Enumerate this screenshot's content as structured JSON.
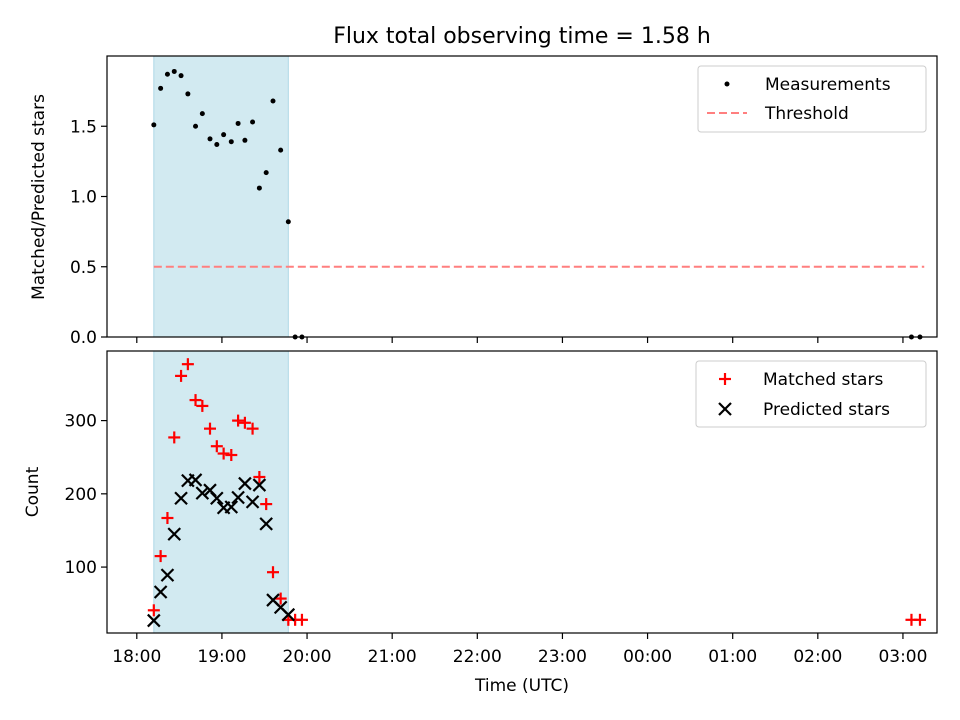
{
  "title": "Flux total observing time = 1.58 h",
  "xlabel": "Time (UTC)",
  "x_ticks": [
    "18:00",
    "19:00",
    "20:00",
    "21:00",
    "22:00",
    "23:00",
    "00:00",
    "01:00",
    "02:00",
    "03:00"
  ],
  "colors": {
    "shade": "#add8e6",
    "threshold": "#ff7f7f",
    "matched": "#ff0000",
    "predicted": "#000000",
    "measurement": "#000000"
  },
  "chart_data": [
    {
      "type": "scatter",
      "ylabel": "Matched/Predicted stars",
      "xlim": [
        -0.35,
        9.4
      ],
      "ylim": [
        0,
        2.0
      ],
      "y_ticks": [
        0.0,
        0.5,
        1.0,
        1.5
      ],
      "y_tick_labels": [
        "0.0",
        "0.5",
        "1.0",
        "1.5"
      ],
      "shaded_span_hours": [
        0.2,
        1.78
      ],
      "legend": {
        "position": "top-right",
        "entries": [
          "Measurements",
          "Threshold"
        ]
      },
      "threshold": {
        "name": "Threshold",
        "value": 0.5,
        "x_range_hours": [
          0.2,
          9.25
        ]
      },
      "series": [
        {
          "name": "Measurements",
          "marker": "dot",
          "x_hours": [
            0.2,
            0.28,
            0.36,
            0.44,
            0.52,
            0.6,
            0.69,
            0.77,
            0.86,
            0.94,
            1.02,
            1.11,
            1.19,
            1.27,
            1.36,
            1.44,
            1.52,
            1.6,
            1.69,
            1.78,
            1.86,
            1.94,
            9.1,
            9.2
          ],
          "y": [
            1.51,
            1.77,
            1.87,
            1.89,
            1.86,
            1.73,
            1.5,
            1.59,
            1.41,
            1.37,
            1.44,
            1.39,
            1.52,
            1.4,
            1.53,
            1.06,
            1.17,
            1.68,
            1.33,
            0.82,
            0.0,
            0.0,
            0.0,
            0.0
          ]
        }
      ]
    },
    {
      "type": "scatter",
      "ylabel": "Count",
      "xlim": [
        -0.35,
        9.4
      ],
      "ylim": [
        10,
        395
      ],
      "y_ticks": [
        100,
        200,
        300
      ],
      "y_tick_labels": [
        "100",
        "200",
        "300"
      ],
      "shaded_span_hours": [
        0.2,
        1.78
      ],
      "legend": {
        "position": "top-right",
        "entries": [
          "Matched stars",
          "Predicted stars"
        ]
      },
      "series": [
        {
          "name": "Matched stars",
          "marker": "plus",
          "x_hours": [
            0.2,
            0.28,
            0.36,
            0.44,
            0.52,
            0.6,
            0.69,
            0.77,
            0.86,
            0.94,
            1.02,
            1.11,
            1.19,
            1.27,
            1.36,
            1.44,
            1.52,
            1.6,
            1.69,
            1.78,
            1.86,
            1.94,
            9.1,
            9.2
          ],
          "y": [
            41,
            115,
            167,
            277,
            361,
            377,
            328,
            320,
            289,
            265,
            255,
            253,
            300,
            297,
            289,
            223,
            186,
            93,
            57,
            28,
            28,
            28,
            28,
            28
          ]
        },
        {
          "name": "Predicted stars",
          "marker": "x",
          "x_hours": [
            0.2,
            0.28,
            0.36,
            0.44,
            0.52,
            0.6,
            0.69,
            0.77,
            0.86,
            0.94,
            1.02,
            1.11,
            1.19,
            1.27,
            1.36,
            1.44,
            1.52,
            1.6,
            1.69,
            1.78
          ],
          "y": [
            27,
            66,
            89,
            145,
            194,
            218,
            219,
            201,
            205,
            194,
            181,
            182,
            195,
            214,
            189,
            212,
            159,
            55,
            45,
            35
          ]
        }
      ]
    }
  ]
}
